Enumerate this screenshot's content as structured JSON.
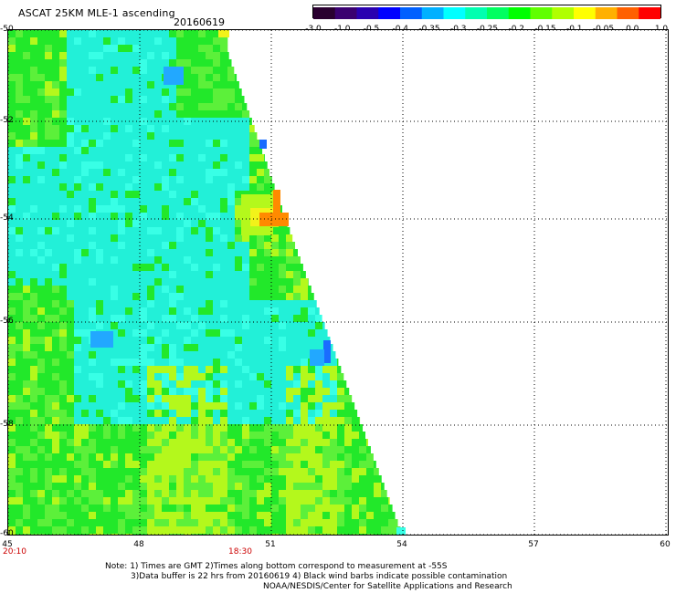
{
  "header": {
    "title": "ASCAT 25KM MLE-1 ascending",
    "date": "20160619"
  },
  "colorbar": {
    "colors": [
      "#2a0030",
      "#3a0070",
      "#2a00b0",
      "#0000ff",
      "#0060ff",
      "#00b0ff",
      "#00ffff",
      "#00ffb0",
      "#00ff60",
      "#00ff00",
      "#60ff00",
      "#b0ff00",
      "#ffff00",
      "#ffb000",
      "#ff6000",
      "#ff0000"
    ],
    "ticks": [
      "-3.0",
      "-1.0",
      "-0.5",
      "-0.4",
      "-0.35",
      "-0.3",
      "-0.25",
      "-0.2",
      "-0.15",
      "-0.1",
      "-0.05",
      "0.0",
      "1.0"
    ]
  },
  "map": {
    "lon_labels": [
      "45",
      "48",
      "51",
      "54",
      "57",
      "60"
    ],
    "lat_labels": [
      "-50",
      "-52",
      "-54",
      "-56",
      "-58",
      "-60"
    ],
    "time_labels": [
      "20:10",
      "18:30"
    ],
    "colors": {
      "green": "#22e82a",
      "lightgreen": "#5cf03a",
      "yellowgreen": "#b4f81c",
      "cyan": "#22f0d8",
      "cyan2": "#38ffe6",
      "blue": "#1a6cff",
      "orange": "#ff8a00",
      "yellow": "#f2f21a"
    }
  },
  "notes": {
    "line1": "Note: 1) Times are GMT 2)Times along bottom correspond to measurement at -55S",
    "line2": "3)Data buffer is 22 hrs from 20160619 4) Black wind barbs indicate possible contamination",
    "line3": "NOAA/NESDIS/Center for Satellite Applications and Research"
  }
}
